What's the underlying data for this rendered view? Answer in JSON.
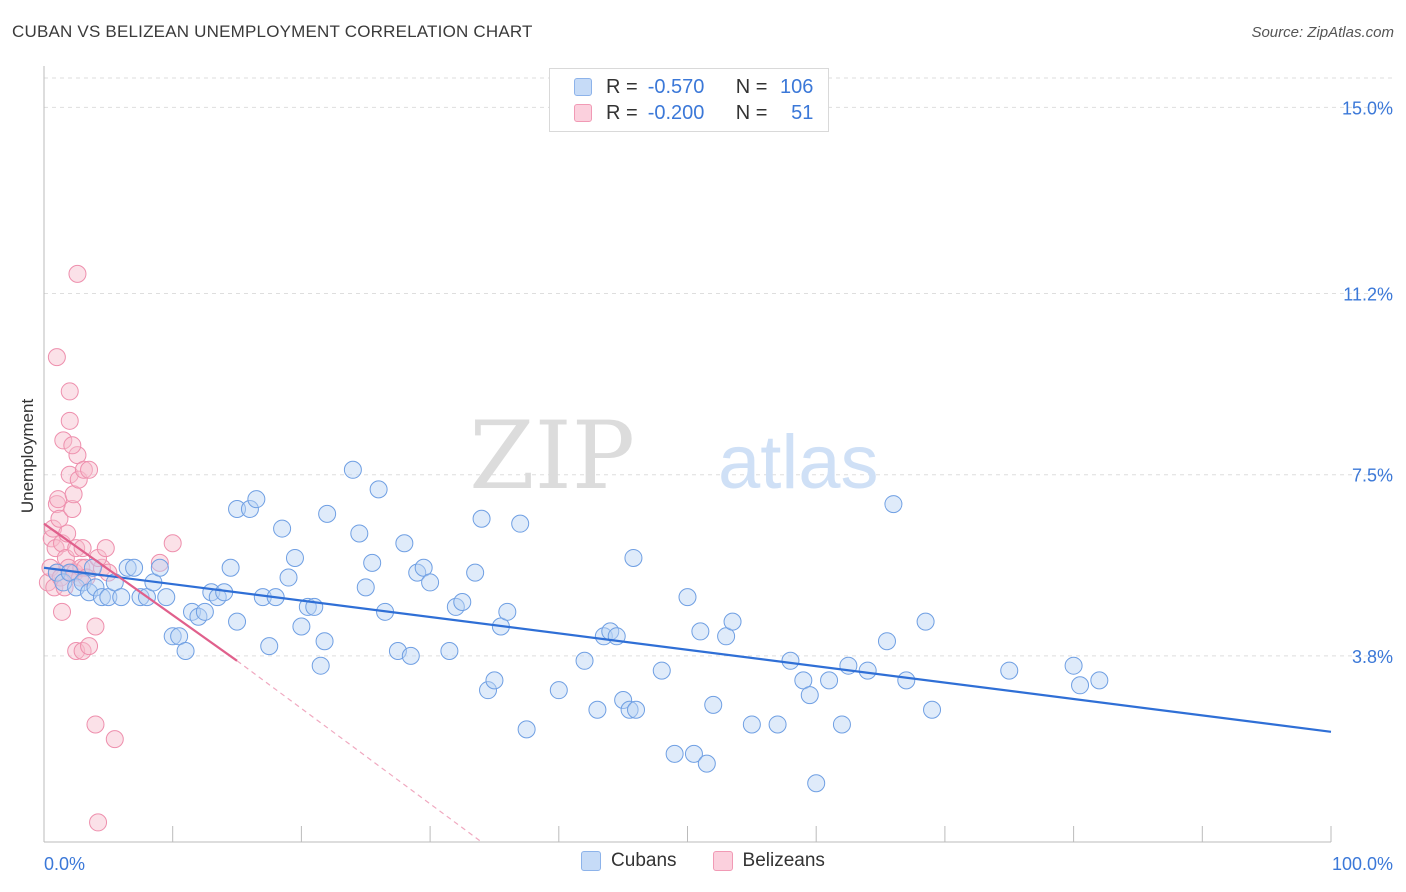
{
  "header": {
    "title": "CUBAN VS BELIZEAN UNEMPLOYMENT CORRELATION CHART",
    "source": "Source: ZipAtlas.com"
  },
  "watermark": {
    "zip": "ZIP",
    "atlas": "atlas"
  },
  "legend": {
    "rows": [
      {
        "r_label": "R =",
        "r_value": "-0.570",
        "n_label": "N =",
        "n_value": "106",
        "color": "#a9c8f2"
      },
      {
        "r_label": "R =",
        "r_value": "-0.200",
        "n_label": "N =",
        "n_value": "51",
        "color": "#f5b8cb"
      }
    ]
  },
  "bottom_legend": {
    "cubans": "Cubans",
    "belizeans": "Belizeans"
  },
  "chart_data": {
    "type": "scatter",
    "title": "CUBAN VS BELIZEAN UNEMPLOYMENT CORRELATION CHART",
    "xlabel": "",
    "ylabel": "Unemployment",
    "xlim": [
      0,
      100
    ],
    "ylim": [
      0,
      15.6
    ],
    "x_tick_labels": [
      "0.0%",
      "100.0%"
    ],
    "y_ticks": [
      3.8,
      7.5,
      11.2,
      15.0
    ],
    "y_tick_labels": [
      "3.8%",
      "7.5%",
      "11.2%",
      "15.0%"
    ],
    "grid": true,
    "legend_position": "top-center",
    "colors": {
      "cubans": "#7fa9e6",
      "cubans_line": "#2f6fd6",
      "belizeans": "#f29ab4",
      "belizeans_line": "#e0608c"
    },
    "series": [
      {
        "name": "Cubans",
        "r": -0.57,
        "n": 106,
        "trend": {
          "x0": 0,
          "y0": 5.6,
          "x1": 100,
          "y1": 2.25
        },
        "points": [
          [
            1.0,
            5.5
          ],
          [
            1.5,
            5.3
          ],
          [
            2.0,
            5.5
          ],
          [
            2.5,
            5.2
          ],
          [
            3.0,
            5.3
          ],
          [
            3.5,
            5.1
          ],
          [
            4.0,
            5.2
          ],
          [
            3.8,
            5.6
          ],
          [
            4.5,
            5.0
          ],
          [
            5.0,
            5.0
          ],
          [
            5.5,
            5.3
          ],
          [
            6.0,
            5.0
          ],
          [
            6.5,
            5.6
          ],
          [
            7.0,
            5.6
          ],
          [
            7.5,
            5.0
          ],
          [
            8.0,
            5.0
          ],
          [
            8.5,
            5.3
          ],
          [
            9.0,
            5.6
          ],
          [
            9.5,
            5.0
          ],
          [
            10.0,
            4.2
          ],
          [
            10.5,
            4.2
          ],
          [
            11.0,
            3.9
          ],
          [
            11.5,
            4.7
          ],
          [
            12.0,
            4.6
          ],
          [
            12.5,
            4.7
          ],
          [
            13.0,
            5.1
          ],
          [
            13.5,
            5.0
          ],
          [
            14.0,
            5.1
          ],
          [
            14.5,
            5.6
          ],
          [
            15.0,
            4.5
          ],
          [
            15.0,
            6.8
          ],
          [
            16.0,
            6.8
          ],
          [
            16.5,
            7.0
          ],
          [
            17.0,
            5.0
          ],
          [
            17.5,
            4.0
          ],
          [
            18.0,
            5.0
          ],
          [
            18.5,
            6.4
          ],
          [
            19.0,
            5.4
          ],
          [
            19.5,
            5.8
          ],
          [
            20.0,
            4.4
          ],
          [
            20.5,
            4.8
          ],
          [
            21.0,
            4.8
          ],
          [
            21.5,
            3.6
          ],
          [
            21.8,
            4.1
          ],
          [
            22.0,
            6.7
          ],
          [
            24.0,
            7.6
          ],
          [
            24.5,
            6.3
          ],
          [
            25.0,
            5.2
          ],
          [
            25.5,
            5.7
          ],
          [
            26.0,
            7.2
          ],
          [
            26.5,
            4.7
          ],
          [
            27.5,
            3.9
          ],
          [
            28.0,
            6.1
          ],
          [
            28.5,
            3.8
          ],
          [
            29.0,
            5.5
          ],
          [
            29.5,
            5.6
          ],
          [
            30.0,
            5.3
          ],
          [
            31.5,
            3.9
          ],
          [
            32.0,
            4.8
          ],
          [
            32.5,
            4.9
          ],
          [
            33.5,
            5.5
          ],
          [
            34.0,
            6.6
          ],
          [
            34.5,
            3.1
          ],
          [
            35.0,
            3.3
          ],
          [
            35.5,
            4.4
          ],
          [
            36.0,
            4.7
          ],
          [
            37.0,
            6.5
          ],
          [
            37.5,
            2.3
          ],
          [
            40.0,
            3.1
          ],
          [
            42.0,
            3.7
          ],
          [
            43.0,
            2.7
          ],
          [
            43.5,
            4.2
          ],
          [
            44.0,
            4.3
          ],
          [
            44.5,
            4.2
          ],
          [
            45.0,
            2.9
          ],
          [
            45.5,
            2.7
          ],
          [
            46.0,
            2.7
          ],
          [
            45.8,
            5.8
          ],
          [
            48.0,
            3.5
          ],
          [
            49.0,
            1.8
          ],
          [
            50.0,
            5.0
          ],
          [
            50.5,
            1.8
          ],
          [
            51.0,
            4.3
          ],
          [
            51.5,
            1.6
          ],
          [
            52.0,
            2.8
          ],
          [
            53.0,
            4.2
          ],
          [
            53.5,
            4.5
          ],
          [
            55.0,
            2.4
          ],
          [
            57.0,
            2.4
          ],
          [
            58.0,
            3.7
          ],
          [
            59.0,
            3.3
          ],
          [
            60.0,
            1.2
          ],
          [
            59.5,
            3.0
          ],
          [
            62.0,
            2.4
          ],
          [
            62.5,
            3.6
          ],
          [
            64.0,
            3.5
          ],
          [
            65.5,
            4.1
          ],
          [
            66.0,
            6.9
          ],
          [
            67.0,
            3.3
          ],
          [
            68.5,
            4.5
          ],
          [
            69.0,
            2.7
          ],
          [
            75.0,
            3.5
          ],
          [
            80.0,
            3.6
          ],
          [
            80.5,
            3.2
          ],
          [
            82.0,
            3.3
          ],
          [
            61.0,
            3.3
          ]
        ]
      },
      {
        "name": "Belizeans",
        "r": -0.2,
        "n": 51,
        "trend": {
          "x0": 0,
          "y0": 6.5,
          "x1": 15,
          "y1": 3.7
        },
        "trend_dashed_to": {
          "x": 34,
          "y": 0
        },
        "points": [
          [
            0.3,
            5.3
          ],
          [
            0.5,
            5.6
          ],
          [
            0.6,
            6.2
          ],
          [
            0.7,
            6.4
          ],
          [
            0.8,
            5.2
          ],
          [
            0.9,
            6.0
          ],
          [
            1.0,
            5.5
          ],
          [
            1.0,
            6.9
          ],
          [
            1.1,
            7.0
          ],
          [
            1.2,
            6.6
          ],
          [
            1.3,
            5.4
          ],
          [
            1.4,
            6.1
          ],
          [
            1.5,
            8.2
          ],
          [
            1.6,
            5.2
          ],
          [
            1.7,
            5.8
          ],
          [
            1.8,
            6.3
          ],
          [
            1.9,
            5.6
          ],
          [
            2.0,
            7.5
          ],
          [
            2.1,
            5.5
          ],
          [
            2.2,
            6.8
          ],
          [
            2.3,
            7.1
          ],
          [
            2.4,
            5.5
          ],
          [
            2.5,
            6.0
          ],
          [
            2.6,
            7.9
          ],
          [
            2.7,
            7.4
          ],
          [
            2.8,
            5.4
          ],
          [
            2.9,
            5.6
          ],
          [
            3.0,
            6.0
          ],
          [
            3.1,
            7.6
          ],
          [
            3.2,
            5.6
          ],
          [
            3.3,
            5.4
          ],
          [
            1.0,
            9.9
          ],
          [
            2.0,
            8.6
          ],
          [
            2.0,
            9.2
          ],
          [
            2.5,
            3.9
          ],
          [
            3.0,
            3.9
          ],
          [
            3.5,
            4.0
          ],
          [
            4.0,
            4.4
          ],
          [
            4.0,
            2.4
          ],
          [
            4.5,
            5.6
          ],
          [
            5.0,
            5.5
          ],
          [
            5.5,
            2.1
          ],
          [
            2.2,
            8.1
          ],
          [
            3.5,
            7.6
          ],
          [
            4.2,
            5.8
          ],
          [
            4.8,
            6.0
          ],
          [
            9.0,
            5.7
          ],
          [
            10.0,
            6.1
          ],
          [
            2.6,
            11.6
          ],
          [
            4.2,
            0.4
          ],
          [
            1.4,
            4.7
          ]
        ]
      }
    ]
  }
}
